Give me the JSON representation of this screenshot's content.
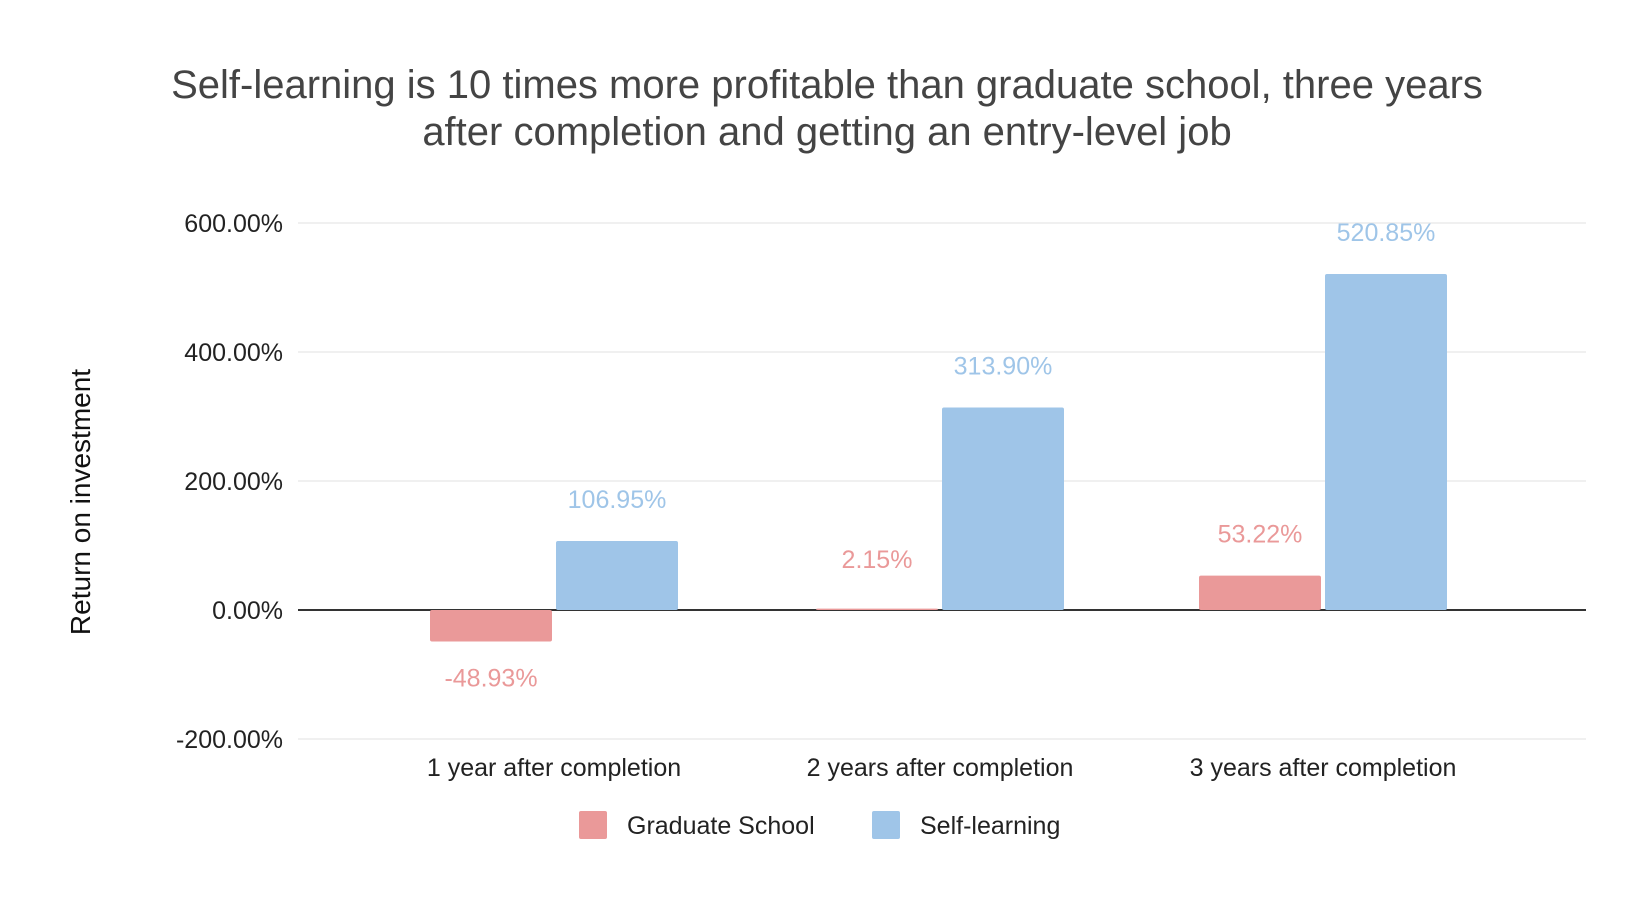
{
  "chart_data": {
    "type": "bar",
    "title": [
      "Self-learning is 10 times more profitable than graduate school, three years",
      "after completion and getting an entry-level job"
    ],
    "xlabel": "",
    "ylabel": "Return on investment",
    "categories": [
      "1 year after completion",
      "2 years after completion",
      "3 years after completion"
    ],
    "series": [
      {
        "name": "Graduate School",
        "values": [
          -48.93,
          2.15,
          53.22
        ],
        "labels": [
          "-48.93%",
          "2.15%",
          "53.22%"
        ],
        "color": "#ea9999"
      },
      {
        "name": "Self-learning",
        "values": [
          106.95,
          313.9,
          520.85
        ],
        "labels": [
          "106.95%",
          "313.90%",
          "520.85%"
        ],
        "color": "#9fc5e8"
      }
    ],
    "ylim": [
      -200,
      600
    ],
    "yticks": [
      -200,
      0,
      200,
      400,
      600
    ],
    "ytick_labels": [
      "-200.00%",
      "0.00%",
      "200.00%",
      "400.00%",
      "600.00%"
    ],
    "grid": true,
    "legend": "bottom"
  }
}
